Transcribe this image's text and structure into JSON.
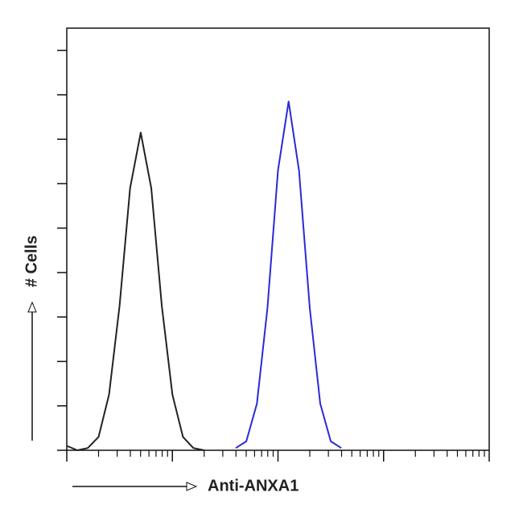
{
  "chart_data": {
    "type": "line",
    "x_label": "Anti-ANXA1",
    "y_label": "# Cells",
    "x": [
      1,
      1.26,
      1.58,
      2,
      2.51,
      3.16,
      3.98,
      5.01,
      6.31,
      7.94,
      10,
      12.6,
      15.8,
      20,
      25.1,
      31.6,
      39.8,
      50.1,
      63.1,
      79.4,
      100,
      126,
      158,
      200,
      251,
      316,
      398
    ],
    "series": [
      {
        "color": "#222222",
        "values": [
          2,
          0,
          1,
          6,
          25,
          65,
          118,
          143,
          118,
          65,
          25,
          6,
          1,
          0,
          null,
          null,
          null,
          null,
          null,
          null,
          null,
          null,
          null,
          null,
          null,
          null,
          null
        ]
      },
      {
        "color": "#2a2ad8",
        "values": [
          null,
          null,
          null,
          null,
          null,
          null,
          null,
          null,
          null,
          null,
          null,
          null,
          null,
          null,
          null,
          null,
          1,
          4,
          21,
          64,
          126,
          157,
          126,
          64,
          21,
          4,
          1
        ]
      }
    ],
    "xscale": "log",
    "xlim": [
      1,
      10000
    ],
    "xticks": [
      1,
      10,
      100,
      1000,
      10000
    ],
    "ylim": [
      0,
      190
    ],
    "yticks": [
      0,
      20,
      40,
      60,
      80,
      100,
      120,
      140,
      160,
      180
    ]
  }
}
